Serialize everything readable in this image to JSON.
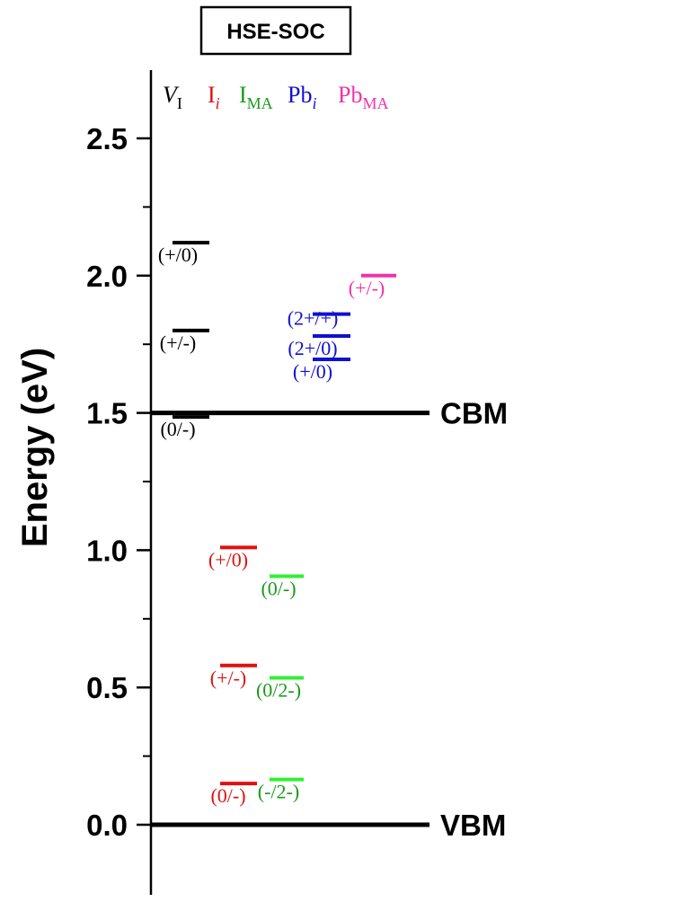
{
  "chart_data": {
    "type": "scatter",
    "title": "HSE-SOC",
    "ylabel": "Energy (eV)",
    "ylim": [
      -0.25,
      2.75
    ],
    "yticks": [
      0.0,
      0.5,
      1.0,
      1.5,
      2.0,
      2.5
    ],
    "ytick_labels": [
      "0.0",
      "0.5",
      "1.0",
      "1.5",
      "2.0",
      "2.5"
    ],
    "grid": false,
    "bands": [
      {
        "name": "CBM",
        "value": 1.5
      },
      {
        "name": "VBM",
        "value": 0.0
      }
    ],
    "series": [
      {
        "name_main": "V",
        "name_sub": "I",
        "main_italic": true,
        "sub_italic": false,
        "color": "#000000",
        "levels": [
          {
            "label": "(+/0)",
            "value": 2.12
          },
          {
            "label": "(+/-)",
            "value": 1.8
          },
          {
            "label": "(0/-)",
            "value": 1.485
          }
        ]
      },
      {
        "name_main": "I",
        "name_sub": "i",
        "main_italic": false,
        "sub_italic": true,
        "color": "#e01010",
        "levels": [
          {
            "label": "(+/0)",
            "value": 1.01
          },
          {
            "label": "(+/-)",
            "value": 0.58
          },
          {
            "label": "(0/-)",
            "value": 0.15
          }
        ]
      },
      {
        "name_main": "I",
        "name_sub": "MA",
        "main_italic": false,
        "sub_italic": false,
        "color": "#1a9a1a",
        "bar_color": "#33ee33",
        "levels": [
          {
            "label": "(0/-)",
            "value": 0.905
          },
          {
            "label": "(0/2-)",
            "value": 0.535
          },
          {
            "label": "(-/2-)",
            "value": 0.165
          }
        ]
      },
      {
        "name_main": "Pb",
        "name_sub": "i",
        "main_italic": false,
        "sub_italic": true,
        "color": "#1010d0",
        "levels": [
          {
            "label": "(2+/+)",
            "value": 1.86
          },
          {
            "label": "(2+/0)",
            "value": 1.78
          },
          {
            "label": "(+/0)",
            "value": 1.695
          }
        ]
      },
      {
        "name_main": "Pb",
        "name_sub": "MA",
        "main_italic": false,
        "sub_italic": false,
        "color": "#ee33aa",
        "levels": [
          {
            "label": "(+/-)",
            "value": 2.0
          }
        ]
      }
    ]
  }
}
